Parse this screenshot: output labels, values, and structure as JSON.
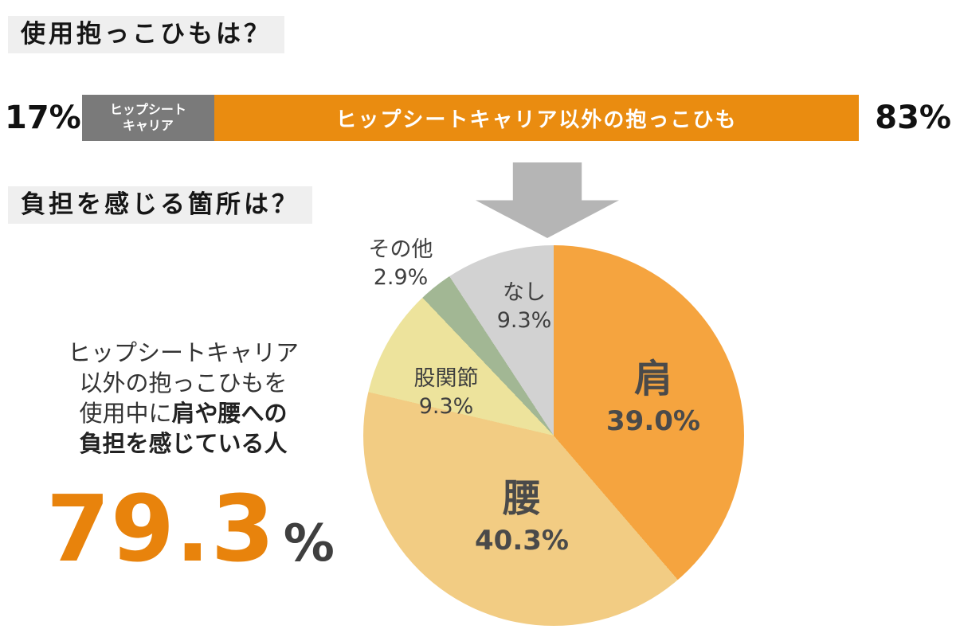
{
  "stat": {
    "line1": "ヒップシートキャリア",
    "line2": "以外の抱っこひもを",
    "line3_normal": "使用中に",
    "line3_bold": "肩や腰への",
    "line4": "負担を感じている人",
    "number": "79.3",
    "unit": "%"
  },
  "colors": {
    "bar_orange": "#EA8C10",
    "bar_gray": "#7A7A7A",
    "heading_bg": "#EFEFEF",
    "arrow_gray": "#B5B5B5",
    "big_number_orange": "#E8830C",
    "label_dark": "#4A4A4A"
  },
  "chart_data": [
    {
      "type": "bar",
      "title": "使用抱っこひもは？",
      "orientation": "horizontal-stacked",
      "unit": "%",
      "segments": [
        {
          "label": "ヒップシートキャリア",
          "label_lines": [
            "ヒップシート",
            "キャリア"
          ],
          "value": 17,
          "value_label": "17%",
          "color": "#7A7A7A"
        },
        {
          "label": "ヒップシートキャリア以外の抱っこひも",
          "value": 83,
          "value_label": "83%",
          "color": "#EA8C10"
        }
      ]
    },
    {
      "type": "pie",
      "title": "負担を感じる箇所は？",
      "unit": "%",
      "start_angle_deg": 0,
      "direction": "clockwise",
      "slices": [
        {
          "label": "肩",
          "value": 39.0,
          "value_label": "39.0%",
          "color": "#F5A43F"
        },
        {
          "label": "腰",
          "value": 40.3,
          "value_label": "40.3%",
          "color": "#F2CC83"
        },
        {
          "label": "股関節",
          "value": 9.3,
          "value_label": "9.3%",
          "color": "#EDE39C"
        },
        {
          "label": "その他",
          "value": 2.9,
          "value_label": "2.9%",
          "color": "#A2B794"
        },
        {
          "label": "なし",
          "value": 9.3,
          "value_label": "9.3%",
          "color": "#D2D2D2"
        }
      ],
      "annotation": {
        "text": "ヒップシートキャリア以外の抱っこひもを使用中に肩や腰への負担を感じている人",
        "value": 79.3,
        "value_label": "79.3%"
      }
    }
  ]
}
